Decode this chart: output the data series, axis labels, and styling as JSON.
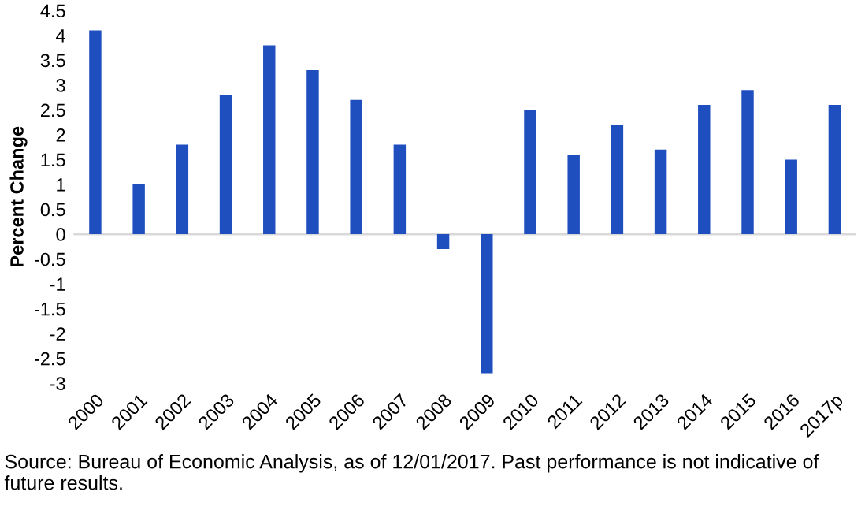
{
  "chart_data": {
    "type": "bar",
    "ylabel": "Percent Change",
    "categories": [
      "2000",
      "2001",
      "2002",
      "2003",
      "2004",
      "2005",
      "2006",
      "2007",
      "2008",
      "2009",
      "2010",
      "2011",
      "2012",
      "2013",
      "2014",
      "2015",
      "2016",
      "2017p"
    ],
    "values": [
      4.1,
      1.0,
      1.8,
      2.8,
      3.8,
      3.3,
      2.7,
      1.8,
      -0.3,
      -2.8,
      2.5,
      1.6,
      2.2,
      1.7,
      2.6,
      2.9,
      1.5,
      2.6
    ],
    "color": "#1f4fbf",
    "ylim": [
      -3,
      4.5
    ],
    "yticks": [
      {
        "value": 4.5,
        "label": "4.5"
      },
      {
        "value": 4,
        "label": "4"
      },
      {
        "value": 3.5,
        "label": "3.5"
      },
      {
        "value": 3,
        "label": "3"
      },
      {
        "value": 2.5,
        "label": "2.5"
      },
      {
        "value": 2,
        "label": "2"
      },
      {
        "value": 1.5,
        "label": "1.5"
      },
      {
        "value": 1,
        "label": "1"
      },
      {
        "value": 0.5,
        "label": "0.5"
      },
      {
        "value": 0,
        "label": "0"
      },
      {
        "value": -0.5,
        "label": "-0.5"
      },
      {
        "value": -1,
        "label": "-1"
      },
      {
        "value": -1.5,
        "label": "-1.5"
      },
      {
        "value": -2,
        "label": "-2"
      },
      {
        "value": -2.5,
        "label": "-2.5"
      },
      {
        "value": -3,
        "label": "-3"
      }
    ],
    "grid": false,
    "ref_lines": [
      {
        "axis": "y",
        "value": 0,
        "color": "#d9d9d9"
      }
    ],
    "annotations": [
      "Source: Bureau of Economic Analysis, as of 12/01/2017. Past performance is not indicative of future results."
    ]
  }
}
